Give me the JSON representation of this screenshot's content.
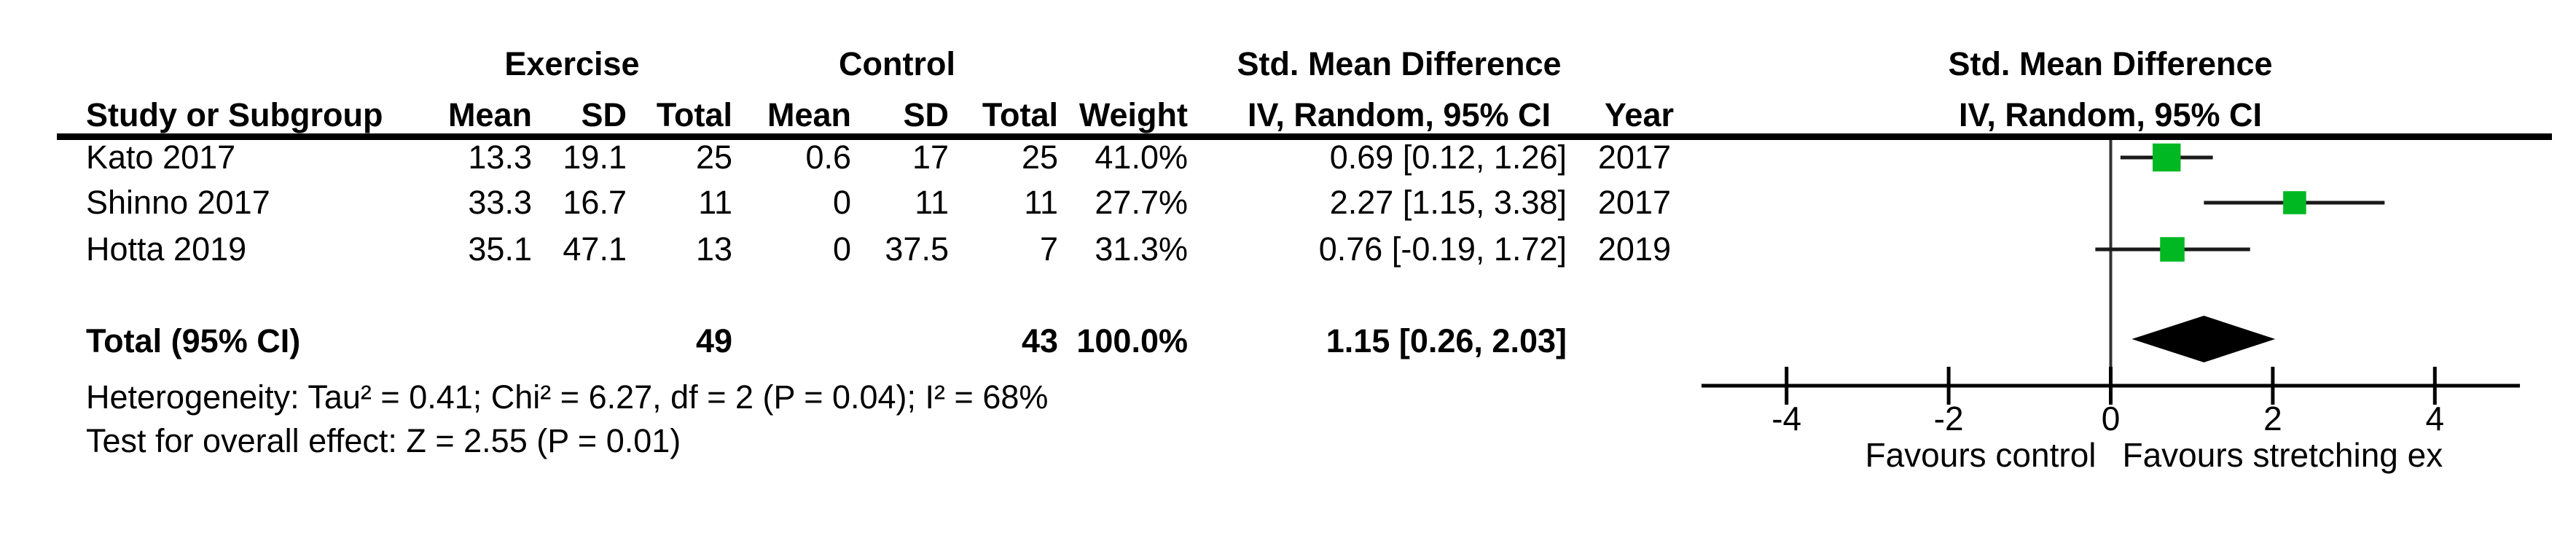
{
  "table": {
    "group1_label": "Exercise",
    "group2_label": "Control",
    "effect_col_title": "Std. Mean Difference",
    "effect_col_subtitle": "IV, Random, 95% CI",
    "plot_title": "Std. Mean Difference",
    "plot_subtitle": "IV, Random, 95% CI",
    "columns": {
      "study": "Study or Subgroup",
      "mean1": "Mean",
      "sd1": "SD",
      "total1": "Total",
      "mean2": "Mean",
      "sd2": "SD",
      "total2": "Total",
      "weight": "Weight",
      "ci": "IV, Random, 95% CI",
      "year": "Year"
    },
    "rows": [
      {
        "study": "Kato 2017",
        "mean1": "13.3",
        "sd1": "19.1",
        "total1": "25",
        "mean2": "0.6",
        "sd2": "17",
        "total2": "25",
        "weight": "41.0%",
        "ci": "0.69 [0.12, 1.26]",
        "year": "2017"
      },
      {
        "study": "Shinno 2017",
        "mean1": "33.3",
        "sd1": "16.7",
        "total1": "11",
        "mean2": "0",
        "sd2": "11",
        "total2": "11",
        "weight": "27.7%",
        "ci": "2.27 [1.15, 3.38]",
        "year": "2017"
      },
      {
        "study": "Hotta 2019",
        "mean1": "35.1",
        "sd1": "47.1",
        "total1": "13",
        "mean2": "0",
        "sd2": "37.5",
        "total2": "7",
        "weight": "31.3%",
        "ci": "0.76 [-0.19, 1.72]",
        "year": "2019"
      }
    ],
    "total_row": {
      "label": "Total (95% CI)",
      "total1": "49",
      "total2": "43",
      "weight": "100.0%",
      "ci": "1.15 [0.26, 2.03]"
    },
    "heterogeneity": "Heterogeneity: Tau² = 0.41; Chi² = 6.27, df = 2 (P = 0.04); I² = 68%",
    "overall_effect": "Test for overall effect: Z = 2.55 (P = 0.01)"
  },
  "chart_data": {
    "type": "forest",
    "x_axis": {
      "ticks": [
        -4,
        -2,
        0,
        2,
        4
      ],
      "xlim": [
        -5.05,
        5.05
      ]
    },
    "studies": [
      {
        "name": "Kato 2017",
        "est": 0.69,
        "lo": 0.12,
        "hi": 1.26,
        "weight_pct": 41.0
      },
      {
        "name": "Shinno 2017",
        "est": 2.27,
        "lo": 1.15,
        "hi": 3.38,
        "weight_pct": 27.7
      },
      {
        "name": "Hotta 2019",
        "est": 0.76,
        "lo": -0.19,
        "hi": 1.72,
        "weight_pct": 31.3
      }
    ],
    "total": {
      "est": 1.15,
      "lo": 0.26,
      "hi": 2.03,
      "weight_pct": 100.0
    },
    "favours_left": "Favours control",
    "favours_right": "Favours stretching ex",
    "marker_color": "#00b822",
    "line_color": "#000000"
  }
}
